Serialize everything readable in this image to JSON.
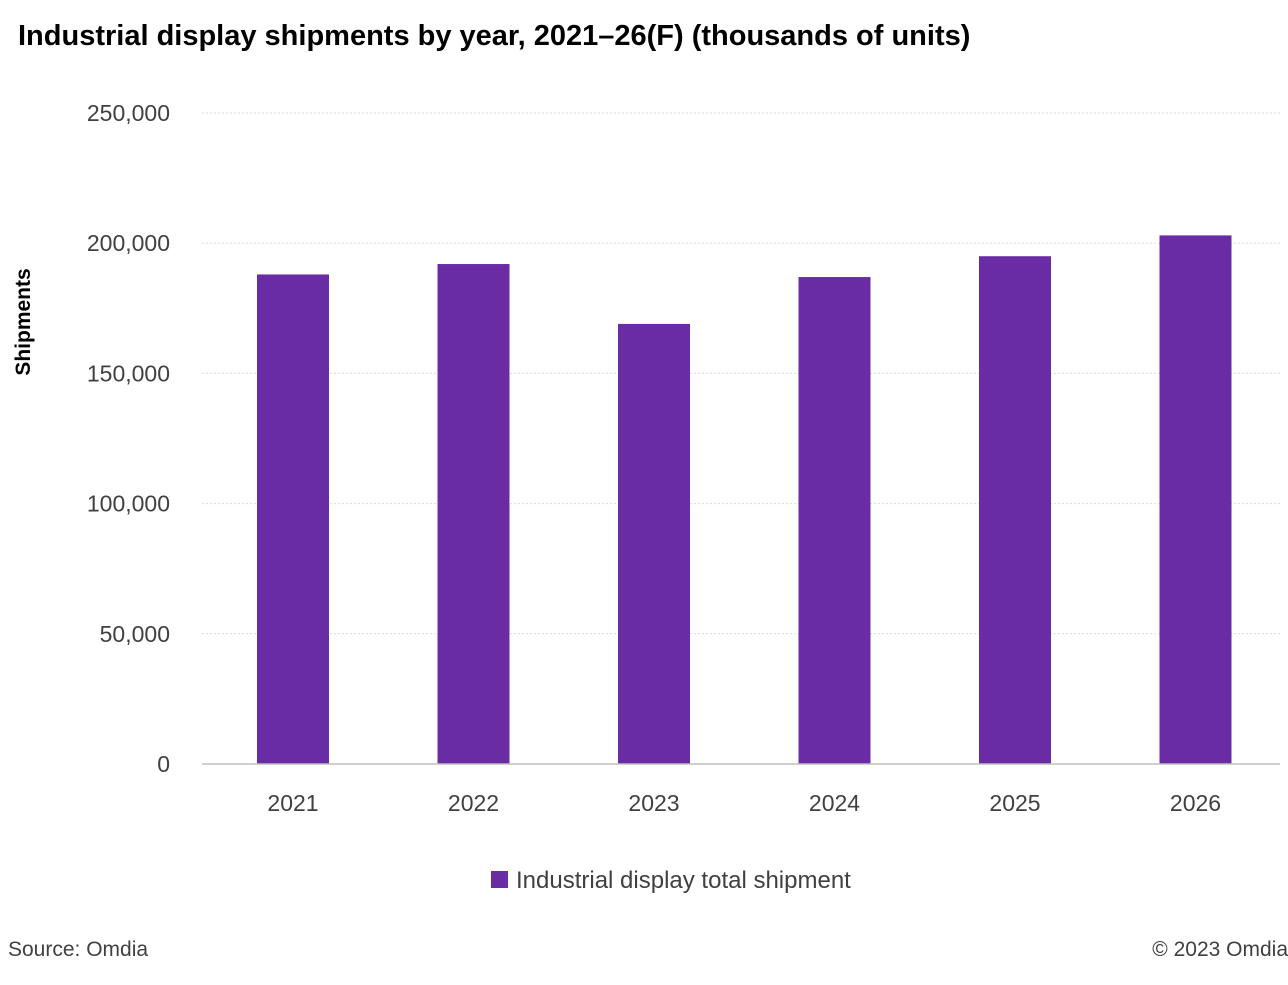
{
  "chart_data": {
    "type": "bar",
    "title": "Industrial display shipments by year, 2021–26(F) (thousands of units)",
    "xlabel": "",
    "ylabel": "Shipments",
    "categories": [
      "2021",
      "2022",
      "2023",
      "2024",
      "2025",
      "2026"
    ],
    "series": [
      {
        "name": "Industrial display total shipment",
        "values": [
          188000,
          192000,
          169000,
          187000,
          195000,
          203000
        ]
      }
    ],
    "ylim": [
      0,
      250000
    ],
    "yticks": [
      0,
      50000,
      100000,
      150000,
      200000,
      250000
    ],
    "ytick_labels": [
      "0",
      "50,000",
      "100,000",
      "150,000",
      "200,000",
      "250,000"
    ],
    "grid": true,
    "legend_position": "bottom-center",
    "colors": {
      "bar": "#6a2ca4",
      "grid": "#d9d9d9",
      "axis": "#bfbfbf"
    }
  },
  "footer": {
    "source": "Source: Omdia",
    "copyright": "© 2023 Omdia"
  }
}
